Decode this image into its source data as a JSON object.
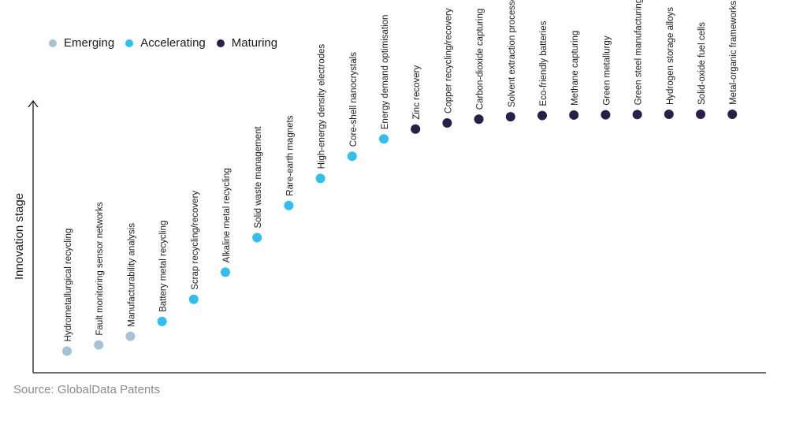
{
  "legend": {
    "emerging": "Emerging",
    "accelerating": "Accelerating",
    "maturing": "Maturing"
  },
  "colors": {
    "emerging": "#a3c4d6",
    "accelerating": "#2ec0f0",
    "maturing": "#2a1e4a",
    "axis": "#1a1a1a"
  },
  "source": "Source: GlobalData Patents",
  "chart_data": {
    "type": "scatter",
    "title": "",
    "xlabel": "",
    "ylabel": "Innovation stage",
    "grid": false,
    "legend_position": "top-left",
    "ylim": [
      0,
      100
    ],
    "points": [
      {
        "label": "Hydrometallurgical recycling",
        "stage": "emerging",
        "y": 4
      },
      {
        "label": "Fault monitoring sensor networks",
        "stage": "emerging",
        "y": 6.5
      },
      {
        "label": "Manufacturability analysis",
        "stage": "emerging",
        "y": 10
      },
      {
        "label": "Battery metal recycling",
        "stage": "accelerating",
        "y": 16
      },
      {
        "label": "Scrap recycling/recovery",
        "stage": "accelerating",
        "y": 25
      },
      {
        "label": "Alkaline metal recycling",
        "stage": "accelerating",
        "y": 36
      },
      {
        "label": "Solid waste management",
        "stage": "accelerating",
        "y": 50
      },
      {
        "label": "Rare-earth magnets",
        "stage": "accelerating",
        "y": 63
      },
      {
        "label": "High-energy density electrodes",
        "stage": "accelerating",
        "y": 74
      },
      {
        "label": "Core-shell nanocrystals",
        "stage": "accelerating",
        "y": 83
      },
      {
        "label": "Energy demand optimisation",
        "stage": "accelerating",
        "y": 90
      },
      {
        "label": "Zinc recovery",
        "stage": "maturing",
        "y": 94
      },
      {
        "label": "Copper recycling/recovery",
        "stage": "maturing",
        "y": 96.5
      },
      {
        "label": "Carbon-dioxide capturing",
        "stage": "maturing",
        "y": 98
      },
      {
        "label": "Solvent extraction processes",
        "stage": "maturing",
        "y": 99
      },
      {
        "label": "Eco-friendly batteries",
        "stage": "maturing",
        "y": 99.5
      },
      {
        "label": "Methane capturing",
        "stage": "maturing",
        "y": 99.7
      },
      {
        "label": "Green metallurgy",
        "stage": "maturing",
        "y": 99.8
      },
      {
        "label": "Green steel manufacturing",
        "stage": "maturing",
        "y": 99.9
      },
      {
        "label": "Hydrogen storage alloys",
        "stage": "maturing",
        "y": 100
      },
      {
        "label": "Solid-oxide fuel cells",
        "stage": "maturing",
        "y": 100
      },
      {
        "label": "Metal-organic frameworks",
        "stage": "maturing",
        "y": 100
      }
    ]
  }
}
